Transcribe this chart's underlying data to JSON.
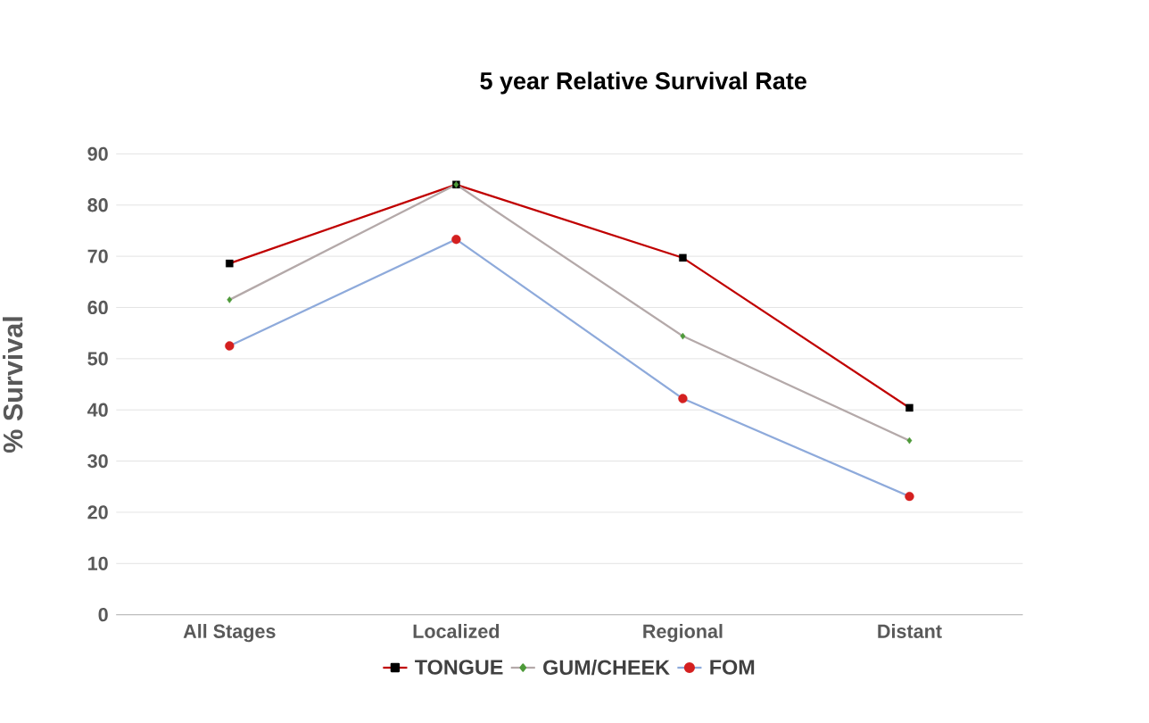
{
  "chart_data": {
    "type": "line",
    "title": "5 year Relative Survival Rate",
    "ylabel": "% Survival",
    "categories": [
      "All Stages",
      "Localized",
      "Regional",
      "Distant"
    ],
    "series": [
      {
        "name": "TONGUE",
        "color": "#c00000",
        "marker": "square",
        "colors": [
          "#000000",
          "#000000",
          "#000000",
          "#000000"
        ],
        "values": [
          68.6,
          84.0,
          69.7,
          40.4
        ]
      },
      {
        "name": "GUM/CHEEK",
        "color": "#b4a9a9",
        "marker": "diamond",
        "colors": [
          "#4e9a3a",
          "#4e9a3a",
          "#4e9a3a",
          "#4e9a3a"
        ],
        "values": [
          61.5,
          84.0,
          54.4,
          34.0
        ]
      },
      {
        "name": "FOM",
        "color": "#8eaadb",
        "marker": "circle",
        "colors": [
          "#d42020",
          "#d42020",
          "#d42020",
          "#d42020"
        ],
        "values": [
          52.5,
          73.3,
          42.2,
          23.1
        ]
      }
    ],
    "ylim": [
      0,
      90
    ],
    "yticks": [
      0,
      10,
      20,
      30,
      40,
      50,
      60,
      70,
      80,
      90
    ],
    "grid": "y",
    "legend": "bottom"
  }
}
